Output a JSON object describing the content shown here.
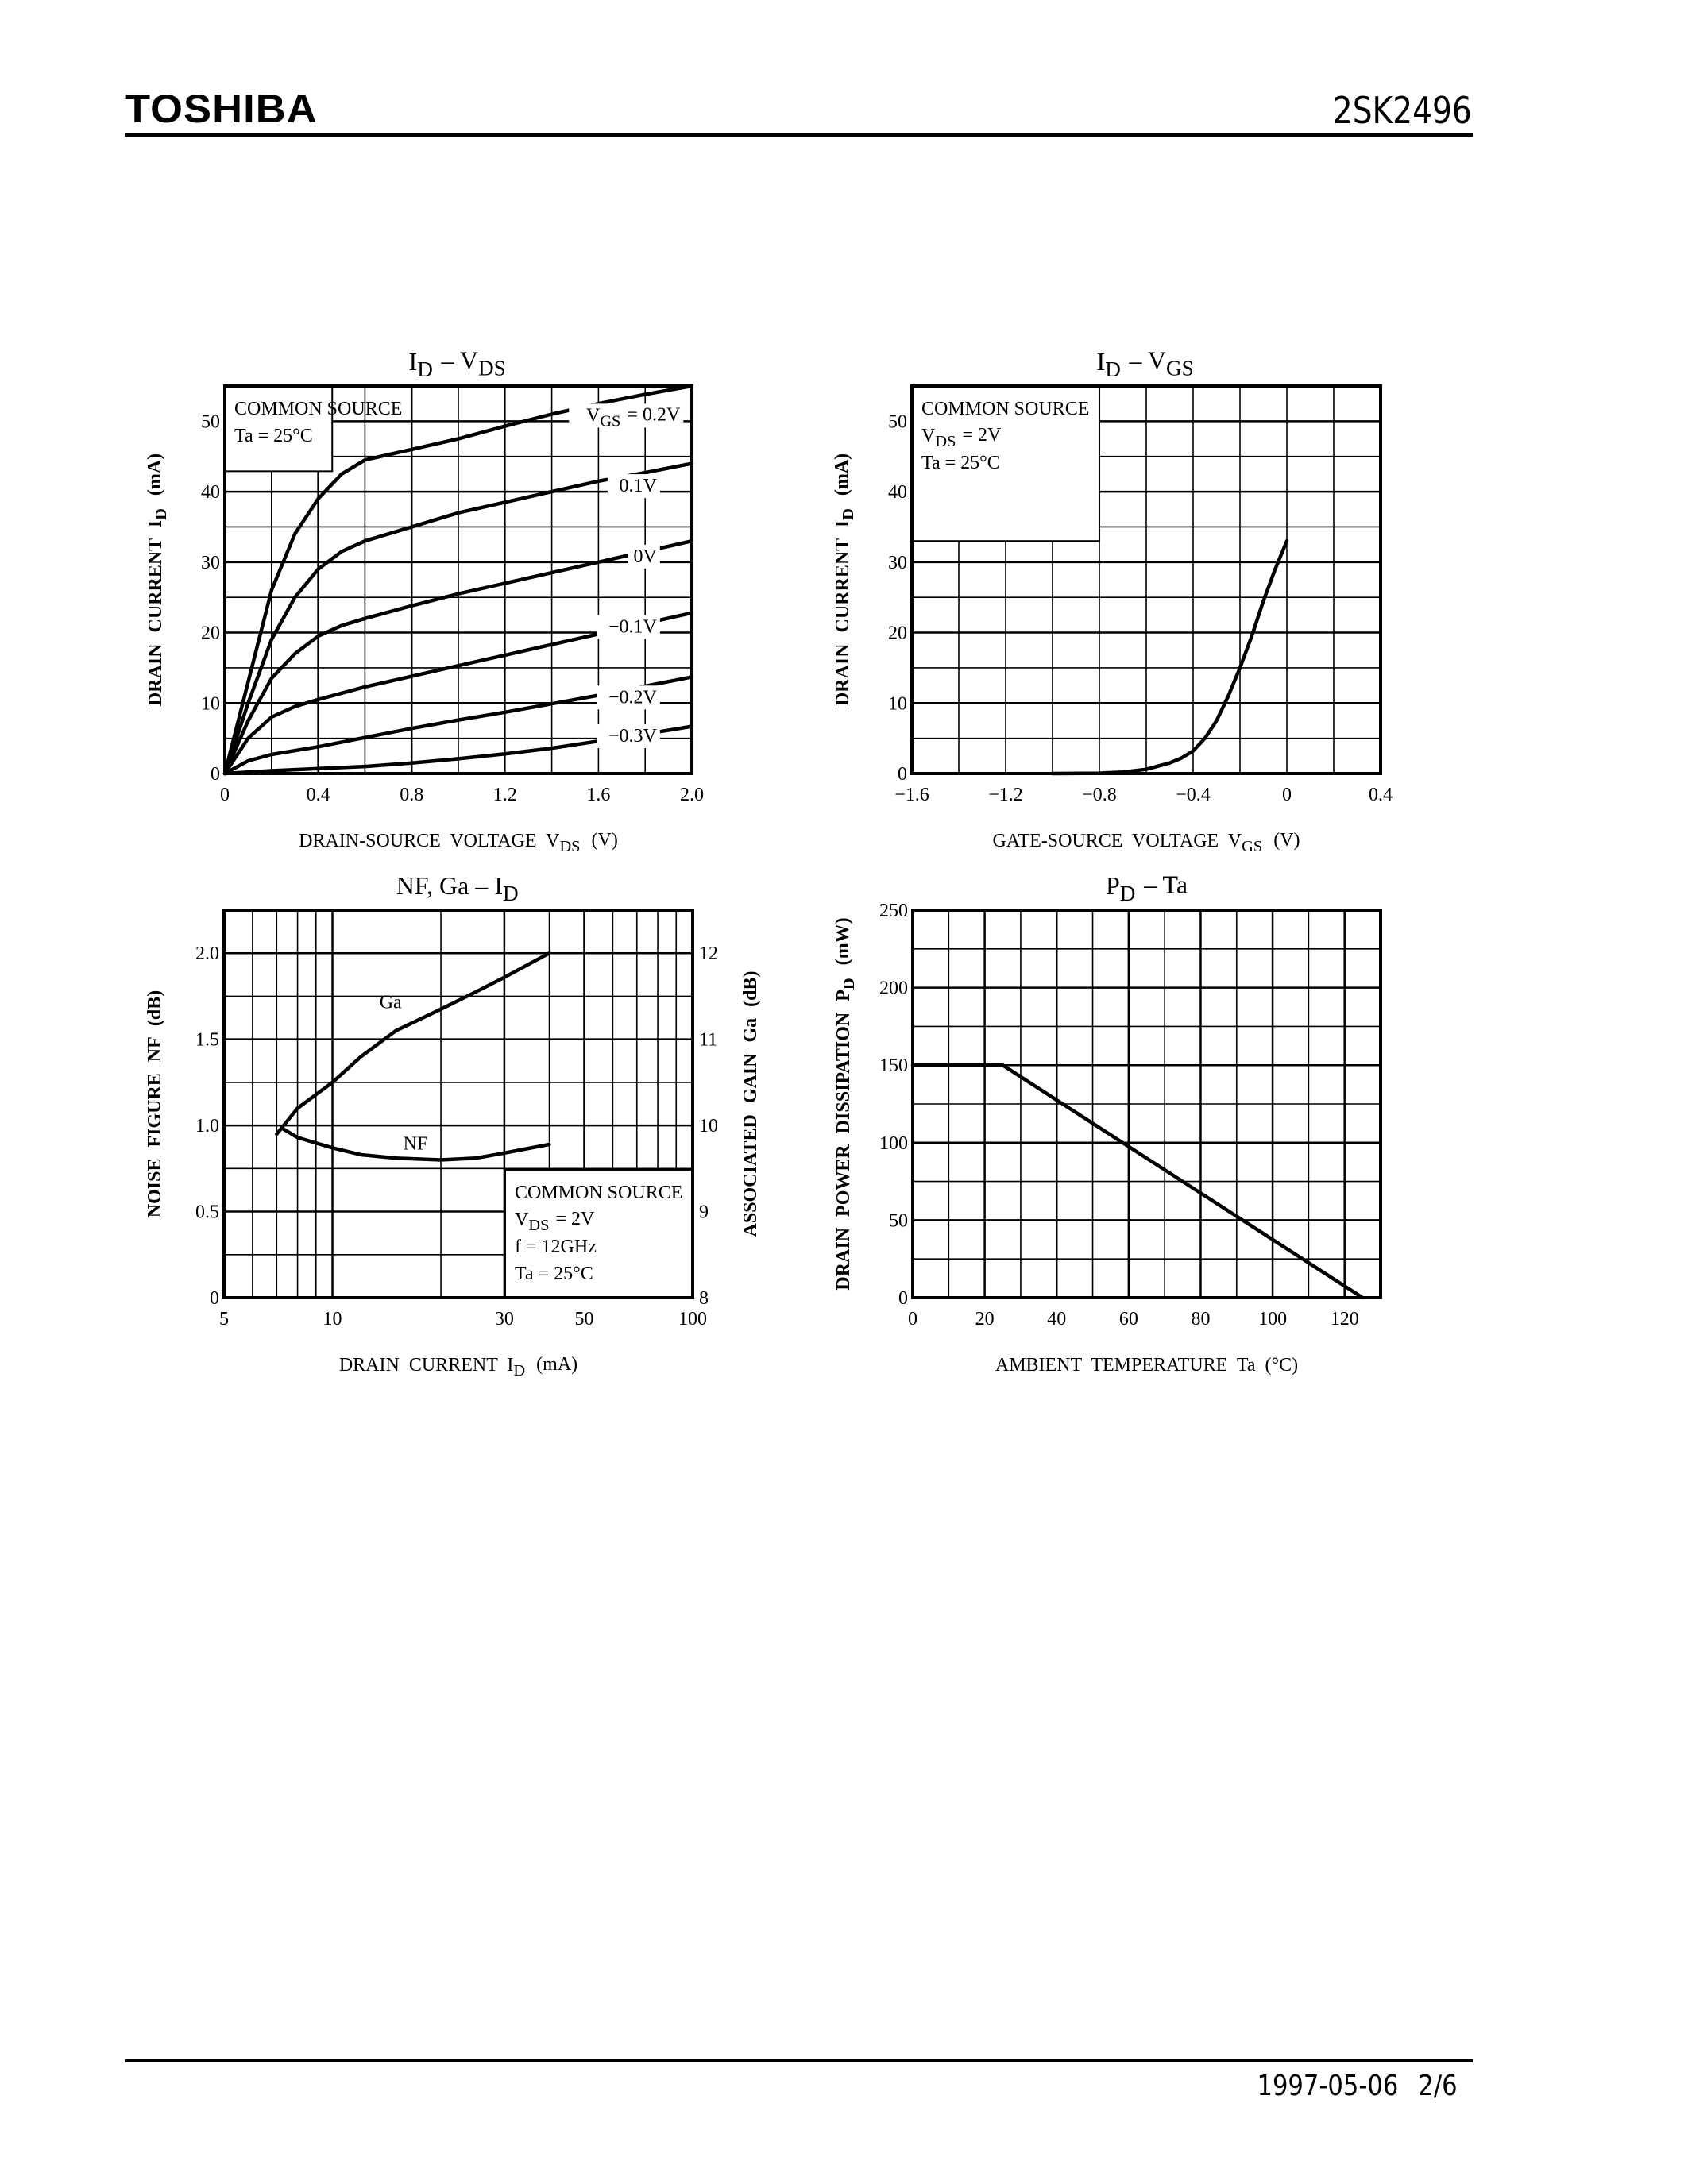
{
  "header": {
    "brand": "TOSHIBA",
    "part_number": "2SK2496"
  },
  "footer": {
    "date": "1997-05-06",
    "page": "2/6"
  },
  "colors": {
    "ink": "#000000",
    "paper": "#ffffff"
  },
  "chart_data": [
    {
      "id": "id_vds",
      "type": "line",
      "title": "ID – VDS",
      "xlabel": "DRAIN-SOURCE VOLTAGE VDS (V)",
      "ylabel": "DRAIN CURRENT ID (mA)",
      "xlim": [
        0,
        2.0
      ],
      "ylim": [
        0,
        55
      ],
      "xticks": [
        0,
        0.4,
        0.8,
        1.2,
        1.6,
        2.0
      ],
      "xtick_labels": [
        "0",
        "0.4",
        "0.8",
        "1.2",
        "1.6",
        "2.0"
      ],
      "yticks": [
        0,
        10,
        20,
        30,
        40,
        50
      ],
      "grid": true,
      "annotation": [
        "COMMON SOURCE",
        "Ta = 25°C"
      ],
      "series": [
        {
          "name": "VGS = 0.2V",
          "x": [
            0,
            0.1,
            0.2,
            0.3,
            0.4,
            0.5,
            0.6,
            0.8,
            1.0,
            1.2,
            1.4,
            1.6,
            1.8,
            2.0
          ],
          "y": [
            0,
            13,
            26,
            34,
            39,
            42.5,
            44.5,
            46,
            47.5,
            49.3,
            51,
            52.5,
            53.8,
            55
          ]
        },
        {
          "name": "0.1V",
          "x": [
            0,
            0.1,
            0.2,
            0.3,
            0.4,
            0.5,
            0.6,
            0.8,
            1.0,
            1.2,
            1.4,
            1.6,
            1.8,
            2.0
          ],
          "y": [
            0,
            10,
            19,
            25,
            29,
            31.5,
            33,
            35,
            37,
            38.5,
            40,
            41.5,
            42.7,
            44
          ]
        },
        {
          "name": "0V",
          "x": [
            0,
            0.1,
            0.2,
            0.3,
            0.4,
            0.5,
            0.6,
            0.8,
            1.0,
            1.2,
            1.4,
            1.6,
            1.8,
            2.0
          ],
          "y": [
            0,
            7.5,
            13.5,
            17,
            19.5,
            21,
            22,
            23.8,
            25.5,
            27,
            28.5,
            30,
            31.5,
            33
          ]
        },
        {
          "name": "-0.1V",
          "x": [
            0,
            0.1,
            0.2,
            0.3,
            0.4,
            0.6,
            0.8,
            1.0,
            1.2,
            1.4,
            1.6,
            1.8,
            2.0
          ],
          "y": [
            0,
            5,
            8,
            9.5,
            10.5,
            12.3,
            13.8,
            15.3,
            16.8,
            18.3,
            19.8,
            21.3,
            22.8
          ]
        },
        {
          "name": "-0.2V",
          "x": [
            0,
            0.1,
            0.2,
            0.4,
            0.6,
            0.8,
            1.0,
            1.2,
            1.4,
            1.6,
            1.8,
            2.0
          ],
          "y": [
            0,
            1.8,
            2.7,
            3.8,
            5.1,
            6.4,
            7.6,
            8.7,
            9.9,
            11.1,
            12.4,
            13.7
          ]
        },
        {
          "name": "-0.3V",
          "x": [
            0,
            0.2,
            0.4,
            0.6,
            0.8,
            1.0,
            1.2,
            1.4,
            1.6,
            1.8,
            2.0
          ],
          "y": [
            0,
            0.4,
            0.7,
            1.0,
            1.5,
            2.1,
            2.8,
            3.6,
            4.6,
            5.6,
            6.7
          ]
        }
      ],
      "series_label_positions": [
        {
          "text": "VGS = 0.2V",
          "x": 1.95,
          "y": 50
        },
        {
          "text": "0.1V",
          "x": 1.85,
          "y": 40
        },
        {
          "text": "0V",
          "x": 1.85,
          "y": 30
        },
        {
          "text": "−0.1V",
          "x": 1.85,
          "y": 20
        },
        {
          "text": "−0.2V",
          "x": 1.85,
          "y": 10
        },
        {
          "text": "−0.3V",
          "x": 1.85,
          "y": 4.5
        }
      ]
    },
    {
      "id": "id_vgs",
      "type": "line",
      "title": "ID – VGS",
      "xlabel": "GATE-SOURCE VOLTAGE VGS (V)",
      "ylabel": "DRAIN CURRENT ID (mA)",
      "xlim": [
        -1.6,
        0.4
      ],
      "ylim": [
        0,
        55
      ],
      "xticks": [
        -1.6,
        -1.2,
        -0.8,
        -0.4,
        0,
        0.4
      ],
      "xtick_labels": [
        "−1.6",
        "−1.2",
        "−0.8",
        "−0.4",
        "0",
        "0.4"
      ],
      "yticks": [
        0,
        10,
        20,
        30,
        40,
        50
      ],
      "grid": true,
      "annotation": [
        "COMMON SOURCE",
        "VDS = 2V",
        "Ta = 25°C"
      ],
      "series": [
        {
          "name": "ID",
          "x": [
            -1.0,
            -0.8,
            -0.7,
            -0.6,
            -0.5,
            -0.45,
            -0.4,
            -0.35,
            -0.3,
            -0.25,
            -0.2,
            -0.15,
            -0.1,
            -0.05,
            0
          ],
          "y": [
            0,
            0.05,
            0.2,
            0.6,
            1.5,
            2.2,
            3.2,
            5,
            7.5,
            11,
            15,
            19.5,
            24.5,
            29,
            33
          ]
        }
      ]
    },
    {
      "id": "nf_ga_id",
      "type": "line",
      "title": "NF, Ga – ID",
      "xlabel": "DRAIN CURRENT ID (mA)",
      "ylabel": "NOISE FIGURE NF (dB)",
      "y2label": "ASSOCIATED GAIN Ga (dB)",
      "xscale": "log",
      "xlim": [
        5,
        100
      ],
      "ylim": [
        0,
        2.25
      ],
      "y2lim": [
        8,
        12.5
      ],
      "xticks": [
        5,
        10,
        30,
        50,
        100
      ],
      "xtick_labels": [
        "5",
        "10",
        "30",
        "50",
        "100"
      ],
      "yticks": [
        0,
        0.5,
        1.0,
        1.5,
        2.0
      ],
      "ytick_labels": [
        "0",
        "0.5",
        "1.0",
        "1.5",
        "2.0"
      ],
      "y2ticks": [
        8,
        9,
        10,
        11,
        12
      ],
      "grid": true,
      "annotation": [
        "COMMON SOURCE",
        "VDS = 2V",
        "f = 12GHz",
        "Ta = 25°C"
      ],
      "series": [
        {
          "name": "Ga",
          "axis": "y2",
          "x": [
            7,
            8,
            10,
            12,
            15,
            20,
            25,
            30,
            40
          ],
          "y": [
            9.9,
            10.2,
            10.5,
            10.8,
            11.1,
            11.35,
            11.55,
            11.72,
            12.0
          ]
        },
        {
          "name": "NF",
          "axis": "y",
          "x": [
            7.3,
            8,
            10,
            12,
            15,
            20,
            25,
            30,
            40
          ],
          "y": [
            0.98,
            0.93,
            0.87,
            0.83,
            0.81,
            0.8,
            0.81,
            0.84,
            0.89
          ]
        }
      ],
      "series_label_positions": [
        {
          "text": "Ga",
          "x": 14.5,
          "y": 1.68
        },
        {
          "text": "NF",
          "x": 17,
          "y": 0.86
        }
      ]
    },
    {
      "id": "pd_ta",
      "type": "line",
      "title": "PD – Ta",
      "xlabel": "AMBIENT TEMPERATURE Ta (°C)",
      "ylabel": "DRAIN POWER DISSIPATION PD (mW)",
      "xlim": [
        0,
        130
      ],
      "ylim": [
        0,
        250
      ],
      "xticks": [
        0,
        20,
        40,
        60,
        80,
        100,
        120
      ],
      "yticks": [
        0,
        50,
        100,
        150,
        200,
        250
      ],
      "grid": true,
      "series": [
        {
          "name": "PD",
          "x": [
            0,
            25,
            125
          ],
          "y": [
            150,
            150,
            0
          ]
        }
      ]
    }
  ]
}
